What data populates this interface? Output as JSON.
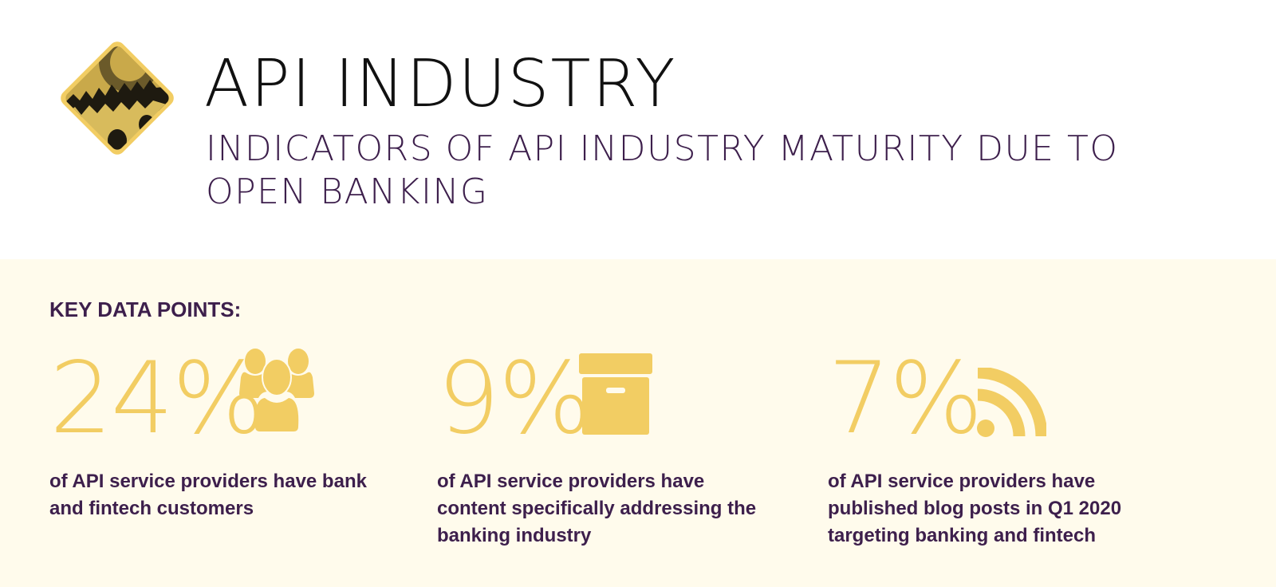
{
  "header": {
    "title": "API INDUSTRY",
    "subtitle": "INDICATORS OF API INDUSTRY MATURITY DUE TO OPEN BANKING",
    "logo_icon": "gears-diamond-icon"
  },
  "section": {
    "heading": "KEY DATA POINTS:",
    "stats": [
      {
        "value": "24%",
        "icon": "users-group-icon",
        "description": "of API service providers have bank and fintech customers"
      },
      {
        "value": "9%",
        "icon": "archive-box-icon",
        "description": "of API service providers have content specifically addressing the banking industry"
      },
      {
        "value": "7%",
        "icon": "rss-feed-icon",
        "description": "of API service providers have published blog posts in Q1 2020 targeting banking and fintech"
      }
    ]
  },
  "colors": {
    "accent": "#f2cd63",
    "text_purple": "#3d1f4c",
    "background_cream": "#fffbec"
  }
}
